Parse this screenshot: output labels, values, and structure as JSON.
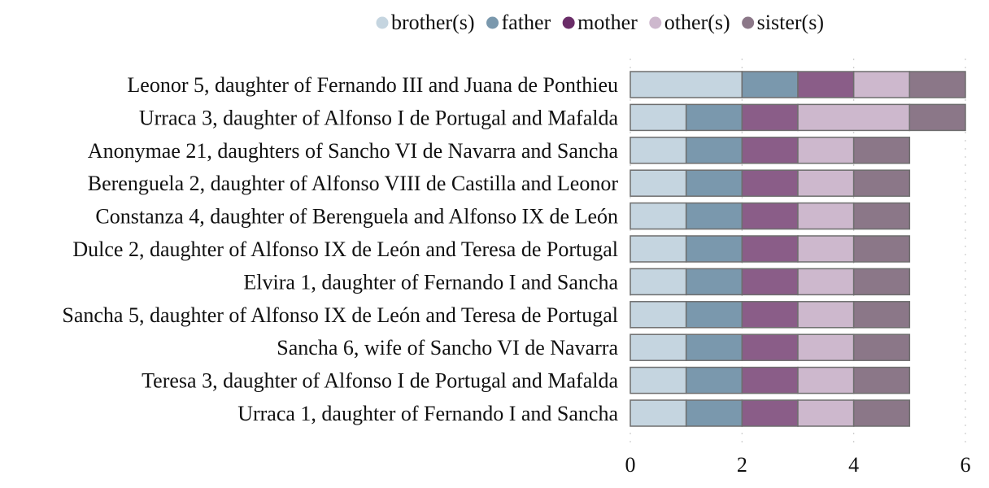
{
  "chart_data": {
    "type": "bar",
    "orientation": "horizontal",
    "stacked": true,
    "title": "",
    "xlabel": "",
    "ylabel": "",
    "xlim": [
      0,
      6
    ],
    "xticks": [
      0,
      2,
      4,
      6
    ],
    "grid": "vertical dotted",
    "legend_position": "top",
    "categories": [
      "Leonor 5, daughter of Fernando III and Juana de Ponthieu",
      "Urraca 3, daughter of Alfonso I de Portugal and Mafalda",
      "Anonymae 21, daughters of Sancho VI de Navarra and Sancha",
      "Berenguela 2, daughter of Alfonso VIII de Castilla and Leonor",
      "Constanza 4, daughter of Berenguela and Alfonso IX de León",
      "Dulce 2, daughter of Alfonso IX de León and Teresa de Portugal",
      "Elvira 1, daughter of Fernando I and Sancha",
      "Sancha 5, daughter of Alfonso IX de León and Teresa de Portugal",
      "Sancha 6, wife of Sancho VI de Navarra",
      "Teresa 3, daughter of Alfonso I de Portugal and Mafalda",
      "Urraca 1, daughter of Fernando I and Sancha"
    ],
    "series": [
      {
        "name": "brother(s)",
        "color": "#c5d5e0",
        "legend_color": "#c5d5e0",
        "values": [
          2,
          1,
          1,
          1,
          1,
          1,
          1,
          1,
          1,
          1,
          1
        ]
      },
      {
        "name": "father",
        "color": "#7a98ad",
        "legend_color": "#7a98ad",
        "values": [
          1,
          1,
          1,
          1,
          1,
          1,
          1,
          1,
          1,
          1,
          1
        ]
      },
      {
        "name": "mother",
        "color": "#8a5d88",
        "legend_color": "#6a2d68",
        "values": [
          1,
          1,
          1,
          1,
          1,
          1,
          1,
          1,
          1,
          1,
          1
        ]
      },
      {
        "name": "other(s)",
        "color": "#cdb8cd",
        "legend_color": "#cdb8cd",
        "values": [
          1,
          2,
          1,
          1,
          1,
          1,
          1,
          1,
          1,
          1,
          1
        ]
      },
      {
        "name": "sister(s)",
        "color": "#8b7788",
        "legend_color": "#8b7788",
        "values": [
          1,
          1,
          1,
          1,
          1,
          1,
          1,
          1,
          1,
          1,
          1
        ]
      }
    ]
  }
}
